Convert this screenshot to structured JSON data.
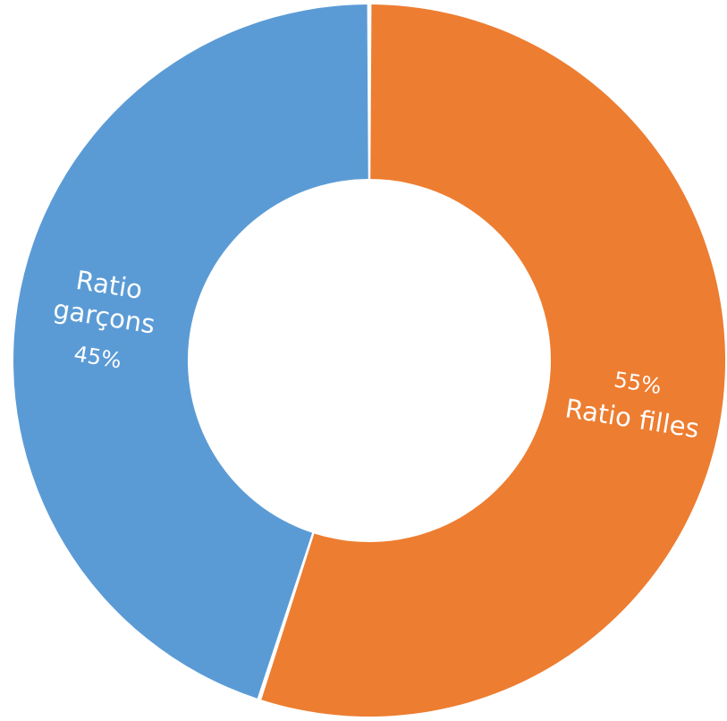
{
  "chart_data": {
    "type": "pie",
    "title": "",
    "legend": "none",
    "slices": [
      {
        "category_lines": [
          "Ratio filles"
        ],
        "value": 55,
        "value_label": "55%",
        "color": "#ED7D31"
      },
      {
        "category_lines": [
          "Ratio",
          "garçons"
        ],
        "value": 45,
        "value_label": "45%",
        "color": "#5B9BD5"
      }
    ]
  }
}
